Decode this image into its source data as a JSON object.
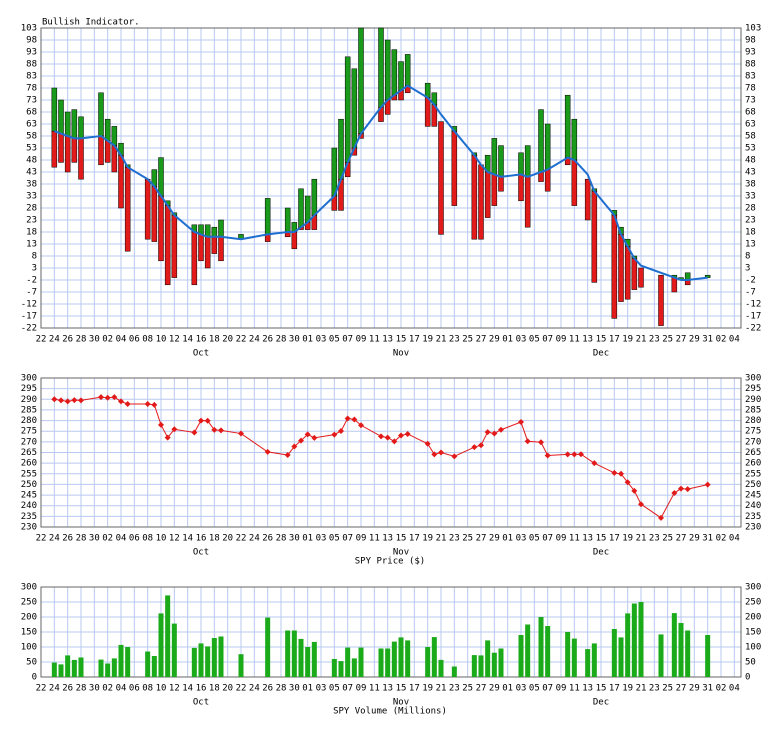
{
  "chart_data": [
    {
      "type": "range",
      "title": "Bullish Indicator.",
      "x": [
        2,
        3,
        4,
        5,
        6,
        9,
        10,
        11,
        12,
        13,
        16,
        17,
        18,
        19,
        20,
        23,
        24,
        25,
        26,
        27,
        30,
        34,
        37,
        38,
        39,
        40,
        41,
        44,
        45,
        46,
        47,
        48,
        51,
        52,
        53,
        54,
        55,
        58,
        59,
        60,
        62,
        65,
        66,
        67,
        68,
        69,
        72,
        73,
        75,
        76,
        79,
        80,
        82,
        83,
        86,
        87,
        88,
        89,
        90,
        93,
        95,
        96,
        97,
        100
      ],
      "high": [
        78,
        73,
        68,
        69,
        66,
        76,
        65,
        62,
        55,
        46,
        40,
        44,
        49,
        31,
        26,
        21,
        21,
        21,
        20,
        23,
        17,
        32,
        28,
        22,
        36,
        33,
        40,
        53,
        65,
        91,
        86,
        103,
        103,
        98,
        94,
        89,
        92,
        80,
        76,
        64,
        62,
        51,
        46,
        50,
        57,
        54,
        51,
        54,
        69,
        63,
        75,
        65,
        40,
        36,
        27,
        20,
        15,
        8,
        3,
        0,
        0,
        -1,
        1,
        0
      ],
      "low": [
        45,
        47,
        43,
        47,
        40,
        46,
        47,
        43,
        28,
        10,
        15,
        14,
        6,
        -4,
        -1,
        -4,
        6,
        3,
        9,
        6,
        15,
        14,
        16,
        11,
        19,
        19,
        19,
        27,
        27,
        41,
        50,
        57,
        64,
        67,
        73,
        73,
        76,
        62,
        62,
        17,
        29,
        15,
        15,
        24,
        29,
        35,
        31,
        20,
        39,
        35,
        46,
        29,
        23,
        -3,
        -18,
        -11,
        -10,
        -6,
        -5,
        -21,
        -7,
        -2,
        -4,
        -1
      ],
      "average": [
        60,
        59,
        58,
        57,
        57,
        58,
        56,
        54,
        50,
        45,
        40,
        37,
        33,
        29,
        25,
        18,
        17,
        16,
        16,
        16,
        15,
        17,
        18,
        18,
        20,
        22,
        25,
        33,
        40,
        47,
        53,
        59,
        70,
        73,
        75,
        77,
        79,
        74,
        71,
        67,
        60,
        50,
        46,
        43,
        42,
        41,
        42,
        41,
        43,
        44,
        49,
        48,
        42,
        35,
        25,
        17,
        12,
        7,
        4,
        1,
        -1,
        -2,
        -2,
        -1
      ],
      "up_color": "#1a9a1a",
      "down_color": "#e31a1a",
      "line_color": "#1f6fd0",
      "xlim": [
        0,
        105
      ],
      "ylim": [
        -22,
        103
      ],
      "yticks": [
        103,
        98,
        93,
        88,
        83,
        78,
        73,
        68,
        63,
        58,
        53,
        48,
        43,
        38,
        33,
        28,
        23,
        18,
        13,
        8,
        3,
        -2,
        -7,
        -12,
        -17,
        -22
      ],
      "xticks": [
        {
          "value": 0,
          "label": "22"
        },
        {
          "value": 2,
          "label": "24"
        },
        {
          "value": 4,
          "label": "26"
        },
        {
          "value": 6,
          "label": "28"
        },
        {
          "value": 8,
          "label": "30"
        },
        {
          "value": 10,
          "label": "02"
        },
        {
          "value": 12,
          "label": "04"
        },
        {
          "value": 14,
          "label": "06"
        },
        {
          "value": 16,
          "label": "08"
        },
        {
          "value": 18,
          "label": "10"
        },
        {
          "value": 20,
          "label": "12"
        },
        {
          "value": 22,
          "label": "14"
        },
        {
          "value": 24,
          "label": "16"
        },
        {
          "value": 26,
          "label": "18"
        },
        {
          "value": 28,
          "label": "20"
        },
        {
          "value": 30,
          "label": "22"
        },
        {
          "value": 32,
          "label": "24"
        },
        {
          "value": 34,
          "label": "26"
        },
        {
          "value": 36,
          "label": "28"
        },
        {
          "value": 38,
          "label": "30"
        },
        {
          "value": 40,
          "label": "01"
        },
        {
          "value": 42,
          "label": "03"
        },
        {
          "value": 44,
          "label": "05"
        },
        {
          "value": 46,
          "label": "07"
        },
        {
          "value": 48,
          "label": "09"
        },
        {
          "value": 50,
          "label": "11"
        },
        {
          "value": 52,
          "label": "13"
        },
        {
          "value": 54,
          "label": "15"
        },
        {
          "value": 56,
          "label": "17"
        },
        {
          "value": 58,
          "label": "19"
        },
        {
          "value": 60,
          "label": "21"
        },
        {
          "value": 62,
          "label": "23"
        },
        {
          "value": 64,
          "label": "25"
        },
        {
          "value": 66,
          "label": "27"
        },
        {
          "value": 68,
          "label": "29"
        },
        {
          "value": 70,
          "label": "01"
        },
        {
          "value": 72,
          "label": "03"
        },
        {
          "value": 74,
          "label": "05"
        },
        {
          "value": 76,
          "label": "07"
        },
        {
          "value": 78,
          "label": "09"
        },
        {
          "value": 80,
          "label": "11"
        },
        {
          "value": 82,
          "label": "13"
        },
        {
          "value": 84,
          "label": "15"
        },
        {
          "value": 86,
          "label": "17"
        },
        {
          "value": 88,
          "label": "19"
        },
        {
          "value": 90,
          "label": "21"
        },
        {
          "value": 92,
          "label": "23"
        },
        {
          "value": 94,
          "label": "25"
        },
        {
          "value": 96,
          "label": "27"
        },
        {
          "value": 98,
          "label": "29"
        },
        {
          "value": 100,
          "label": "31"
        },
        {
          "value": 102,
          "label": "02"
        },
        {
          "value": 104,
          "label": "04"
        }
      ],
      "month_labels": [
        {
          "value": 24,
          "label": "Oct"
        },
        {
          "value": 54,
          "label": "Nov"
        },
        {
          "value": 84,
          "label": "Dec"
        }
      ],
      "grid": true
    },
    {
      "type": "line",
      "x_label": "SPY Price ($)",
      "x": [
        2,
        3,
        4,
        5,
        6,
        9,
        10,
        11,
        12,
        13,
        16,
        17,
        18,
        19,
        20,
        23,
        24,
        25,
        26,
        27,
        30,
        34,
        37,
        38,
        39,
        40,
        41,
        44,
        45,
        46,
        47,
        48,
        51,
        52,
        53,
        54,
        55,
        58,
        59,
        60,
        62,
        65,
        66,
        67,
        68,
        69,
        72,
        73,
        75,
        76,
        79,
        80,
        81,
        83,
        86,
        87,
        88,
        89,
        90,
        93,
        95,
        96,
        97,
        100
      ],
      "values": [
        290,
        289.5,
        289,
        289.6,
        289.5,
        291,
        290.7,
        291,
        289,
        287.8,
        287.8,
        287.4,
        278,
        272,
        275.9,
        274.4,
        280,
        279.9,
        275.6,
        275.4,
        273.9,
        265.3,
        263.8,
        267.8,
        270.6,
        273.5,
        271.9,
        273.4,
        275.1,
        281,
        280.5,
        277.8,
        272.6,
        272,
        270.2,
        273,
        273.7,
        269.1,
        264.1,
        265,
        263.2,
        267.5,
        268.4,
        274.6,
        273.9,
        275.7,
        279.3,
        270.3,
        269.8,
        263.6,
        264.1,
        264.1,
        264.2,
        260,
        255.4,
        255,
        251,
        247,
        240.7,
        234.3,
        246,
        248,
        247.8,
        249.9
      ],
      "color": "#e31a1a",
      "xlim": [
        0,
        105
      ],
      "ylim": [
        230,
        300
      ],
      "yticks": [
        300,
        295,
        290,
        285,
        280,
        275,
        270,
        265,
        260,
        255,
        250,
        245,
        240,
        235,
        230
      ],
      "xticks": [
        {
          "value": 0,
          "label": "22"
        },
        {
          "value": 2,
          "label": "24"
        },
        {
          "value": 4,
          "label": "26"
        },
        {
          "value": 6,
          "label": "28"
        },
        {
          "value": 8,
          "label": "30"
        },
        {
          "value": 10,
          "label": "02"
        },
        {
          "value": 12,
          "label": "04"
        },
        {
          "value": 14,
          "label": "06"
        },
        {
          "value": 16,
          "label": "08"
        },
        {
          "value": 18,
          "label": "10"
        },
        {
          "value": 20,
          "label": "12"
        },
        {
          "value": 22,
          "label": "14"
        },
        {
          "value": 24,
          "label": "16"
        },
        {
          "value": 26,
          "label": "18"
        },
        {
          "value": 28,
          "label": "20"
        },
        {
          "value": 30,
          "label": "22"
        },
        {
          "value": 32,
          "label": "24"
        },
        {
          "value": 34,
          "label": "26"
        },
        {
          "value": 36,
          "label": "28"
        },
        {
          "value": 38,
          "label": "30"
        },
        {
          "value": 40,
          "label": "01"
        },
        {
          "value": 42,
          "label": "03"
        },
        {
          "value": 44,
          "label": "05"
        },
        {
          "value": 46,
          "label": "07"
        },
        {
          "value": 48,
          "label": "09"
        },
        {
          "value": 50,
          "label": "11"
        },
        {
          "value": 52,
          "label": "13"
        },
        {
          "value": 54,
          "label": "15"
        },
        {
          "value": 56,
          "label": "17"
        },
        {
          "value": 58,
          "label": "19"
        },
        {
          "value": 60,
          "label": "21"
        },
        {
          "value": 62,
          "label": "23"
        },
        {
          "value": 64,
          "label": "25"
        },
        {
          "value": 66,
          "label": "27"
        },
        {
          "value": 68,
          "label": "29"
        },
        {
          "value": 70,
          "label": "01"
        },
        {
          "value": 72,
          "label": "03"
        },
        {
          "value": 74,
          "label": "05"
        },
        {
          "value": 76,
          "label": "07"
        },
        {
          "value": 78,
          "label": "09"
        },
        {
          "value": 80,
          "label": "11"
        },
        {
          "value": 82,
          "label": "13"
        },
        {
          "value": 84,
          "label": "15"
        },
        {
          "value": 86,
          "label": "17"
        },
        {
          "value": 88,
          "label": "19"
        },
        {
          "value": 90,
          "label": "21"
        },
        {
          "value": 92,
          "label": "23"
        },
        {
          "value": 94,
          "label": "25"
        },
        {
          "value": 96,
          "label": "27"
        },
        {
          "value": 98,
          "label": "29"
        },
        {
          "value": 100,
          "label": "31"
        },
        {
          "value": 102,
          "label": "02"
        },
        {
          "value": 104,
          "label": "04"
        }
      ],
      "month_labels": [
        {
          "value": 24,
          "label": "Oct"
        },
        {
          "value": 54,
          "label": "Nov"
        },
        {
          "value": 84,
          "label": "Dec"
        }
      ],
      "grid": true
    },
    {
      "type": "bar",
      "x_label": "SPY Volume (Millions)",
      "x": [
        2,
        3,
        4,
        5,
        6,
        9,
        10,
        11,
        12,
        13,
        16,
        17,
        18,
        19,
        20,
        23,
        24,
        25,
        26,
        27,
        30,
        34,
        37,
        38,
        39,
        40,
        41,
        44,
        45,
        46,
        47,
        48,
        51,
        52,
        53,
        54,
        55,
        58,
        59,
        60,
        62,
        65,
        66,
        67,
        68,
        69,
        72,
        73,
        75,
        76,
        79,
        80,
        82,
        83,
        86,
        87,
        88,
        89,
        90,
        93,
        95,
        96,
        97,
        100
      ],
      "values": [
        48,
        42,
        72,
        57,
        65,
        58,
        45,
        62,
        107,
        100,
        85,
        70,
        212,
        272,
        178,
        97,
        112,
        102,
        130,
        135,
        76,
        198,
        155,
        155,
        127,
        100,
        117,
        60,
        53,
        98,
        62,
        98,
        95,
        95,
        118,
        132,
        122,
        100,
        133,
        57,
        35,
        73,
        72,
        122,
        81,
        95,
        140,
        175,
        200,
        170,
        150,
        128,
        93,
        112,
        160,
        132,
        212,
        245,
        250,
        142,
        213,
        180,
        155,
        140
      ],
      "color": "#1aaa1a",
      "xlim": [
        0,
        105
      ],
      "ylim": [
        0,
        300
      ],
      "yticks": [
        300,
        250,
        200,
        150,
        100,
        50,
        0
      ],
      "xticks": [
        {
          "value": 0,
          "label": "22"
        },
        {
          "value": 2,
          "label": "24"
        },
        {
          "value": 4,
          "label": "26"
        },
        {
          "value": 6,
          "label": "28"
        },
        {
          "value": 8,
          "label": "30"
        },
        {
          "value": 10,
          "label": "02"
        },
        {
          "value": 12,
          "label": "04"
        },
        {
          "value": 14,
          "label": "06"
        },
        {
          "value": 16,
          "label": "08"
        },
        {
          "value": 18,
          "label": "10"
        },
        {
          "value": 20,
          "label": "12"
        },
        {
          "value": 22,
          "label": "14"
        },
        {
          "value": 24,
          "label": "16"
        },
        {
          "value": 26,
          "label": "18"
        },
        {
          "value": 28,
          "label": "20"
        },
        {
          "value": 30,
          "label": "22"
        },
        {
          "value": 32,
          "label": "24"
        },
        {
          "value": 34,
          "label": "26"
        },
        {
          "value": 36,
          "label": "28"
        },
        {
          "value": 38,
          "label": "30"
        },
        {
          "value": 40,
          "label": "01"
        },
        {
          "value": 42,
          "label": "03"
        },
        {
          "value": 44,
          "label": "05"
        },
        {
          "value": 46,
          "label": "07"
        },
        {
          "value": 48,
          "label": "09"
        },
        {
          "value": 50,
          "label": "11"
        },
        {
          "value": 52,
          "label": "13"
        },
        {
          "value": 54,
          "label": "15"
        },
        {
          "value": 56,
          "label": "17"
        },
        {
          "value": 58,
          "label": "19"
        },
        {
          "value": 60,
          "label": "21"
        },
        {
          "value": 62,
          "label": "23"
        },
        {
          "value": 64,
          "label": "25"
        },
        {
          "value": 66,
          "label": "27"
        },
        {
          "value": 68,
          "label": "29"
        },
        {
          "value": 70,
          "label": "01"
        },
        {
          "value": 72,
          "label": "03"
        },
        {
          "value": 74,
          "label": "05"
        },
        {
          "value": 76,
          "label": "07"
        },
        {
          "value": 78,
          "label": "09"
        },
        {
          "value": 80,
          "label": "11"
        },
        {
          "value": 82,
          "label": "13"
        },
        {
          "value": 84,
          "label": "15"
        },
        {
          "value": 86,
          "label": "17"
        },
        {
          "value": 88,
          "label": "19"
        },
        {
          "value": 90,
          "label": "21"
        },
        {
          "value": 92,
          "label": "23"
        },
        {
          "value": 94,
          "label": "25"
        },
        {
          "value": 96,
          "label": "27"
        },
        {
          "value": 98,
          "label": "29"
        },
        {
          "value": 100,
          "label": "31"
        },
        {
          "value": 102,
          "label": "02"
        },
        {
          "value": 104,
          "label": "04"
        }
      ],
      "month_labels": [
        {
          "value": 24,
          "label": "Oct"
        },
        {
          "value": 54,
          "label": "Nov"
        },
        {
          "value": 84,
          "label": "Dec"
        }
      ],
      "grid": true
    }
  ]
}
